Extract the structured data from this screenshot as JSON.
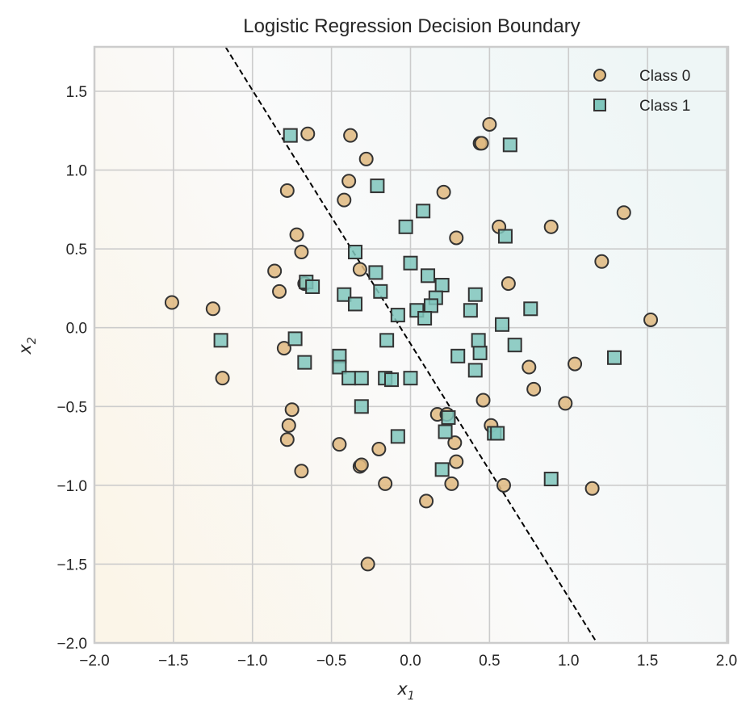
{
  "chart_data": {
    "type": "scatter",
    "title": "Logistic Regression Decision Boundary",
    "xlabel": "x",
    "xlabel_sub": "1",
    "ylabel": "x",
    "ylabel_sub": "2",
    "xlim": [
      -2.0,
      2.03
    ],
    "ylim": [
      -2.0,
      1.78
    ],
    "xticks": [
      -2.0,
      -1.5,
      -1.0,
      -0.5,
      0.0,
      0.5,
      1.0,
      1.5,
      2.0
    ],
    "xtick_labels": [
      "−2.0",
      "−1.5",
      "−1.0",
      "−0.5",
      "0.0",
      "0.5",
      "1.0",
      "1.5",
      "2.0"
    ],
    "yticks": [
      -2.0,
      -1.5,
      -1.0,
      -0.5,
      0.0,
      0.5,
      1.0,
      1.5
    ],
    "ytick_labels": [
      "−2.0",
      "−1.5",
      "−1.0",
      "−0.5",
      "0.0",
      "0.5",
      "1.0",
      "1.5"
    ],
    "grid": true,
    "legend_position": "top-right",
    "colors": {
      "class0_fill": "#dfb97f",
      "class1_fill": "#7fc6bc",
      "marker_edge": "#333333",
      "grid": "#cccccc",
      "axes_edge": "#cccccc",
      "boundary": "#000000",
      "bg_class0_tint": "#fbf5e8",
      "bg_class1_tint": "#eef6f6",
      "bg_mid": "#fafafa"
    },
    "decision_boundary": {
      "style": "dashed",
      "points": [
        [
          -1.17,
          1.78
        ],
        [
          1.18,
          -2.0
        ]
      ]
    },
    "series": [
      {
        "name": "Class 0",
        "marker": "circle",
        "points": [
          [
            -0.65,
            1.23
          ],
          [
            -0.38,
            1.22
          ],
          [
            -0.28,
            1.07
          ],
          [
            -0.39,
            0.93
          ],
          [
            -0.78,
            0.87
          ],
          [
            -0.42,
            0.81
          ],
          [
            -0.72,
            0.59
          ],
          [
            -0.69,
            0.48
          ],
          [
            -0.86,
            0.36
          ],
          [
            -0.32,
            0.37
          ],
          [
            -0.83,
            0.23
          ],
          [
            -0.67,
            0.28
          ],
          [
            -1.51,
            0.16
          ],
          [
            -1.25,
            0.12
          ],
          [
            -1.19,
            -0.32
          ],
          [
            -0.8,
            -0.13
          ],
          [
            -0.75,
            -0.52
          ],
          [
            -0.77,
            -0.62
          ],
          [
            -0.78,
            -0.71
          ],
          [
            -0.69,
            -0.91
          ],
          [
            -0.45,
            -0.74
          ],
          [
            -0.2,
            -0.77
          ],
          [
            -0.32,
            -0.88
          ],
          [
            -0.31,
            -0.87
          ],
          [
            -0.16,
            -0.99
          ],
          [
            -0.27,
            -1.5
          ],
          [
            0.21,
            0.86
          ],
          [
            0.29,
            0.57
          ],
          [
            0.5,
            1.29
          ],
          [
            0.44,
            1.17
          ],
          [
            0.45,
            1.17
          ],
          [
            0.56,
            0.64
          ],
          [
            0.89,
            0.64
          ],
          [
            0.62,
            0.28
          ],
          [
            1.21,
            0.42
          ],
          [
            1.35,
            0.73
          ],
          [
            1.52,
            0.05
          ],
          [
            1.04,
            -0.23
          ],
          [
            0.75,
            -0.25
          ],
          [
            0.78,
            -0.39
          ],
          [
            0.46,
            -0.46
          ],
          [
            0.17,
            -0.55
          ],
          [
            0.23,
            -0.55
          ],
          [
            0.51,
            -0.62
          ],
          [
            0.28,
            -0.73
          ],
          [
            0.29,
            -0.85
          ],
          [
            0.1,
            -1.1
          ],
          [
            0.26,
            -0.99
          ],
          [
            0.59,
            -1.0
          ],
          [
            0.98,
            -0.48
          ],
          [
            1.15,
            -1.02
          ]
        ]
      },
      {
        "name": "Class 1",
        "marker": "square",
        "points": [
          [
            -0.76,
            1.22
          ],
          [
            -0.21,
            0.9
          ],
          [
            -0.03,
            0.64
          ],
          [
            0.08,
            0.74
          ],
          [
            0.63,
            1.16
          ],
          [
            0.6,
            0.58
          ],
          [
            -0.35,
            0.48
          ],
          [
            -0.66,
            0.29
          ],
          [
            -0.62,
            0.26
          ],
          [
            -0.42,
            0.21
          ],
          [
            -0.35,
            0.15
          ],
          [
            -0.22,
            0.35
          ],
          [
            -0.19,
            0.23
          ],
          [
            0.0,
            0.41
          ],
          [
            0.11,
            0.33
          ],
          [
            0.2,
            0.27
          ],
          [
            0.16,
            0.19
          ],
          [
            0.13,
            0.14
          ],
          [
            0.04,
            0.11
          ],
          [
            0.09,
            0.06
          ],
          [
            -0.08,
            0.08
          ],
          [
            0.38,
            0.11
          ],
          [
            0.41,
            0.21
          ],
          [
            0.58,
            0.02
          ],
          [
            0.76,
            0.12
          ],
          [
            0.66,
            -0.11
          ],
          [
            -1.2,
            -0.08
          ],
          [
            -0.73,
            -0.07
          ],
          [
            -0.67,
            -0.22
          ],
          [
            -0.45,
            -0.18
          ],
          [
            -0.45,
            -0.25
          ],
          [
            -0.39,
            -0.32
          ],
          [
            -0.31,
            -0.32
          ],
          [
            -0.16,
            -0.32
          ],
          [
            -0.12,
            -0.33
          ],
          [
            0.0,
            -0.32
          ],
          [
            -0.15,
            -0.08
          ],
          [
            -0.31,
            -0.5
          ],
          [
            -0.08,
            -0.69
          ],
          [
            0.3,
            -0.18
          ],
          [
            0.44,
            -0.16
          ],
          [
            0.43,
            -0.08
          ],
          [
            0.41,
            -0.27
          ],
          [
            0.24,
            -0.57
          ],
          [
            0.22,
            -0.66
          ],
          [
            0.53,
            -0.67
          ],
          [
            0.55,
            -0.67
          ],
          [
            0.2,
            -0.9
          ],
          [
            0.89,
            -0.96
          ],
          [
            1.29,
            -0.19
          ]
        ]
      }
    ]
  }
}
